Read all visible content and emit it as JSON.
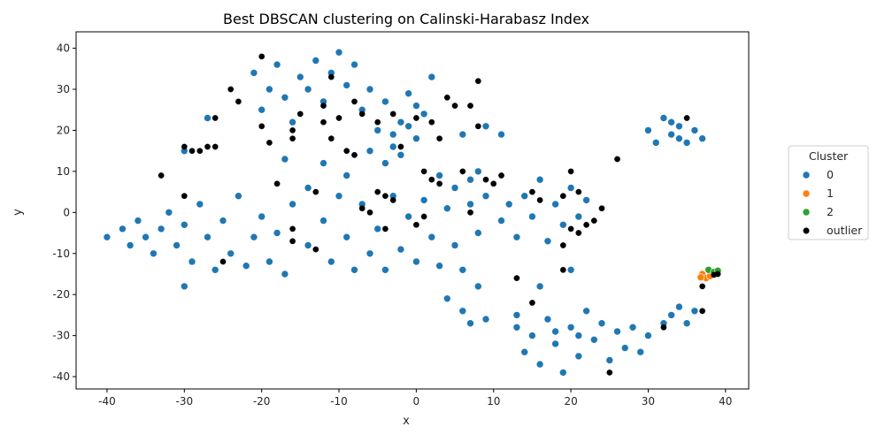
{
  "chart_data": {
    "type": "scatter",
    "title": "Best DBSCAN clustering on Calinski-Harabasz Index",
    "xlabel": "x",
    "ylabel": "y",
    "xlim": [
      -44,
      43
    ],
    "ylim": [
      -43,
      44
    ],
    "xticks": [
      -40,
      -30,
      -20,
      -10,
      0,
      10,
      20,
      30,
      40
    ],
    "yticks": [
      -40,
      -30,
      -20,
      -10,
      0,
      10,
      20,
      30,
      40
    ],
    "grid": false,
    "legend": {
      "title": "Cluster",
      "placement": "right"
    },
    "series": [
      {
        "name": "0",
        "color": "#1f77b4",
        "points": [
          [
            -40,
            -6
          ],
          [
            -38,
            -4
          ],
          [
            -37,
            -8
          ],
          [
            -36,
            -2
          ],
          [
            -35,
            -6
          ],
          [
            -34,
            -10
          ],
          [
            -33,
            -4
          ],
          [
            -32,
            0
          ],
          [
            -31,
            -8
          ],
          [
            -30,
            -3
          ],
          [
            -30,
            -18
          ],
          [
            -29,
            -12
          ],
          [
            -28,
            2
          ],
          [
            -27,
            -6
          ],
          [
            -26,
            -14
          ],
          [
            -25,
            -2
          ],
          [
            -24,
            -10
          ],
          [
            -23,
            4
          ],
          [
            -22,
            -13
          ],
          [
            -21,
            -6
          ],
          [
            -20,
            -1
          ],
          [
            -19,
            -12
          ],
          [
            -18,
            -5
          ],
          [
            -17,
            -15
          ],
          [
            -30,
            15
          ],
          [
            -27,
            23
          ],
          [
            -21,
            34
          ],
          [
            -20,
            25
          ],
          [
            -19,
            30
          ],
          [
            -18,
            36
          ],
          [
            -17,
            28
          ],
          [
            -16,
            22
          ],
          [
            -15,
            33
          ],
          [
            -14,
            30
          ],
          [
            -13,
            37
          ],
          [
            -12,
            27
          ],
          [
            -11,
            34
          ],
          [
            -10,
            39
          ],
          [
            -9,
            31
          ],
          [
            -8,
            36
          ],
          [
            -7,
            25
          ],
          [
            -6,
            30
          ],
          [
            -5,
            20
          ],
          [
            -4,
            27
          ],
          [
            -3,
            16
          ],
          [
            -2,
            22
          ],
          [
            -1,
            29
          ],
          [
            0,
            18
          ],
          [
            1,
            24
          ],
          [
            2,
            33
          ],
          [
            -6,
            15
          ],
          [
            -4,
            12
          ],
          [
            -3,
            19
          ],
          [
            -2,
            14
          ],
          [
            -1,
            21
          ],
          [
            0,
            26
          ],
          [
            -17,
            13
          ],
          [
            -12,
            12
          ],
          [
            -9,
            9
          ],
          [
            -14,
            6
          ],
          [
            -16,
            2
          ],
          [
            -14,
            -8
          ],
          [
            -12,
            -2
          ],
          [
            -11,
            -12
          ],
          [
            -10,
            4
          ],
          [
            -9,
            -6
          ],
          [
            -8,
            -14
          ],
          [
            -7,
            2
          ],
          [
            -6,
            -10
          ],
          [
            -5,
            -4
          ],
          [
            -4,
            -14
          ],
          [
            -3,
            4
          ],
          [
            -2,
            -9
          ],
          [
            -1,
            -1
          ],
          [
            0,
            -12
          ],
          [
            1,
            3
          ],
          [
            2,
            -6
          ],
          [
            3,
            -13
          ],
          [
            4,
            1
          ],
          [
            5,
            -8
          ],
          [
            6,
            -14
          ],
          [
            7,
            2
          ],
          [
            8,
            -5
          ],
          [
            3,
            9
          ],
          [
            5,
            6
          ],
          [
            7,
            8
          ],
          [
            8,
            10
          ],
          [
            9,
            4
          ],
          [
            4,
            -21
          ],
          [
            6,
            -24
          ],
          [
            7,
            -27
          ],
          [
            8,
            -18
          ],
          [
            9,
            -26
          ],
          [
            11,
            -2
          ],
          [
            12,
            2
          ],
          [
            13,
            -6
          ],
          [
            14,
            4
          ],
          [
            15,
            -1
          ],
          [
            16,
            8
          ],
          [
            17,
            -7
          ],
          [
            18,
            2
          ],
          [
            19,
            -3
          ],
          [
            20,
            6
          ],
          [
            21,
            -1
          ],
          [
            22,
            3
          ],
          [
            20,
            -14
          ],
          [
            16,
            -18
          ],
          [
            13,
            -25
          ],
          [
            11,
            19
          ],
          [
            9,
            21
          ],
          [
            6,
            19
          ],
          [
            13,
            -28
          ],
          [
            14,
            -34
          ],
          [
            15,
            -30
          ],
          [
            16,
            -37
          ],
          [
            17,
            -26
          ],
          [
            18,
            -32
          ],
          [
            19,
            -39
          ],
          [
            20,
            -28
          ],
          [
            21,
            -35
          ],
          [
            22,
            -24
          ],
          [
            23,
            -31
          ],
          [
            24,
            -27
          ],
          [
            25,
            -36
          ],
          [
            26,
            -29
          ],
          [
            27,
            -33
          ],
          [
            28,
            -28
          ],
          [
            29,
            -34
          ],
          [
            30,
            -30
          ],
          [
            18,
            -29
          ],
          [
            21,
            -30
          ],
          [
            30,
            20
          ],
          [
            31,
            17
          ],
          [
            32,
            23
          ],
          [
            33,
            19
          ],
          [
            34,
            21
          ],
          [
            35,
            17
          ],
          [
            36,
            20
          ],
          [
            37,
            18
          ],
          [
            34,
            18
          ],
          [
            33,
            22
          ],
          [
            33,
            -25
          ],
          [
            34,
            -23
          ],
          [
            35,
            -27
          ],
          [
            36,
            -24
          ],
          [
            32,
            -27
          ]
        ]
      },
      {
        "name": "1",
        "color": "#ff7f0e",
        "points": [
          [
            37,
            -15
          ],
          [
            37.5,
            -16
          ],
          [
            38,
            -15.5
          ],
          [
            36.8,
            -15.8
          ]
        ]
      },
      {
        "name": "2",
        "color": "#2ca02c",
        "points": [
          [
            37.8,
            -14
          ],
          [
            38.5,
            -14.5
          ],
          [
            39,
            -14.2
          ]
        ]
      },
      {
        "name": "outlier",
        "color": "#000000",
        "points": [
          [
            -20,
            38
          ],
          [
            -24,
            30
          ],
          [
            -23,
            27
          ],
          [
            -20,
            21
          ],
          [
            -19,
            17
          ],
          [
            -18,
            7
          ],
          [
            -26,
            23
          ],
          [
            -30,
            16
          ],
          [
            -29,
            15
          ],
          [
            -28,
            15
          ],
          [
            -27,
            16
          ],
          [
            -26,
            16
          ],
          [
            -33,
            9
          ],
          [
            -30,
            4
          ],
          [
            -25,
            -12
          ],
          [
            -16,
            -4
          ],
          [
            -16,
            -7
          ],
          [
            -16,
            20
          ],
          [
            -16,
            18
          ],
          [
            -15,
            24
          ],
          [
            -13,
            5
          ],
          [
            -13,
            -9
          ],
          [
            -12,
            26
          ],
          [
            -12,
            22
          ],
          [
            -11,
            33
          ],
          [
            -11,
            18
          ],
          [
            -10,
            23
          ],
          [
            -9,
            15
          ],
          [
            -8,
            27
          ],
          [
            -8,
            14
          ],
          [
            -7,
            24
          ],
          [
            -7,
            1
          ],
          [
            -6,
            0
          ],
          [
            -5,
            22
          ],
          [
            -5,
            5
          ],
          [
            -4,
            4
          ],
          [
            -4,
            -4
          ],
          [
            -3,
            3
          ],
          [
            -3,
            24
          ],
          [
            -2,
            16
          ],
          [
            0,
            23
          ],
          [
            0,
            -3
          ],
          [
            1,
            10
          ],
          [
            1,
            -1
          ],
          [
            2,
            8
          ],
          [
            2,
            22
          ],
          [
            3,
            7
          ],
          [
            3,
            18
          ],
          [
            4,
            28
          ],
          [
            5,
            26
          ],
          [
            6,
            10
          ],
          [
            7,
            26
          ],
          [
            7,
            0
          ],
          [
            8,
            32
          ],
          [
            8,
            21
          ],
          [
            9,
            8
          ],
          [
            10,
            7
          ],
          [
            11,
            9
          ],
          [
            13,
            -16
          ],
          [
            15,
            -22
          ],
          [
            15,
            5
          ],
          [
            16,
            3
          ],
          [
            19,
            -8
          ],
          [
            19,
            -14
          ],
          [
            19,
            4
          ],
          [
            20,
            -4
          ],
          [
            20,
            10
          ],
          [
            21,
            5
          ],
          [
            21,
            -5
          ],
          [
            22,
            -3
          ],
          [
            23,
            -2
          ],
          [
            24,
            1
          ],
          [
            25,
            -39
          ],
          [
            26,
            13
          ],
          [
            32,
            -28
          ],
          [
            35,
            23
          ],
          [
            37,
            -18
          ],
          [
            37,
            -24
          ],
          [
            39,
            -15
          ],
          [
            38.5,
            -15.2
          ]
        ]
      }
    ]
  }
}
